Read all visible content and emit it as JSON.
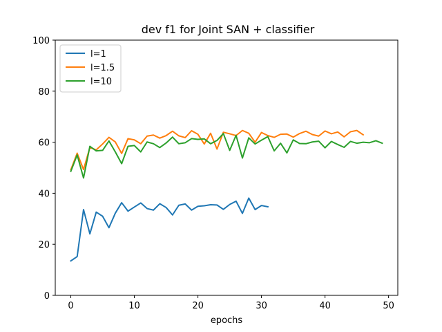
{
  "chart_data": {
    "type": "line",
    "title": "dev f1 for Joint SAN + classifier",
    "xlabel": "epochs",
    "ylabel": "",
    "xlim": [
      -2.45,
      51.45
    ],
    "ylim": [
      0,
      100
    ],
    "xticks": [
      0,
      10,
      20,
      30,
      40,
      50
    ],
    "yticks": [
      0,
      20,
      40,
      60,
      80,
      100
    ],
    "grid": false,
    "legend_position": "top-left",
    "series": [
      {
        "name": "l=1",
        "color": "#1f77b4",
        "values": [
          13.5,
          15.2,
          33.6,
          24.1,
          32.6,
          31.0,
          26.5,
          32.2,
          36.3,
          33.0,
          34.6,
          36.2,
          34.0,
          33.4,
          35.9,
          34.4,
          31.5,
          35.3,
          35.8,
          33.4,
          34.9,
          35.1,
          35.5,
          35.4,
          33.7,
          35.6,
          36.9,
          32.1,
          38.1,
          33.6,
          35.2,
          34.7
        ]
      },
      {
        "name": "l=1.5",
        "color": "#ff7f0e",
        "values": [
          49.2,
          55.7,
          49.3,
          57.9,
          57.0,
          59.3,
          61.9,
          60.1,
          55.6,
          61.4,
          60.9,
          59.4,
          62.4,
          62.8,
          61.6,
          62.6,
          64.3,
          62.5,
          61.8,
          64.5,
          63.1,
          59.3,
          63.5,
          57.3,
          63.9,
          63.3,
          62.6,
          64.6,
          63.5,
          60.0,
          63.8,
          62.6,
          61.9,
          63.1,
          63.2,
          62.0,
          63.4,
          64.3,
          63.0,
          62.4,
          64.4,
          63.3,
          64.0,
          62.1,
          64.1,
          64.6,
          62.9
        ]
      },
      {
        "name": "l=10",
        "color": "#2ca02c",
        "values": [
          48.6,
          55.0,
          46.0,
          58.4,
          56.6,
          56.8,
          60.5,
          56.2,
          51.6,
          58.4,
          58.7,
          56.2,
          60.1,
          59.4,
          57.9,
          59.7,
          62.0,
          59.4,
          59.8,
          61.4,
          61.1,
          61.3,
          59.4,
          60.7,
          63.4,
          56.8,
          62.7,
          53.8,
          61.7,
          59.3,
          60.8,
          62.2,
          56.6,
          59.6,
          55.8,
          60.9,
          59.5,
          59.4,
          60.1,
          60.4,
          57.8,
          60.3,
          59.1,
          58.0,
          60.3,
          59.6,
          60.0,
          59.8,
          60.6,
          59.6
        ]
      }
    ]
  }
}
